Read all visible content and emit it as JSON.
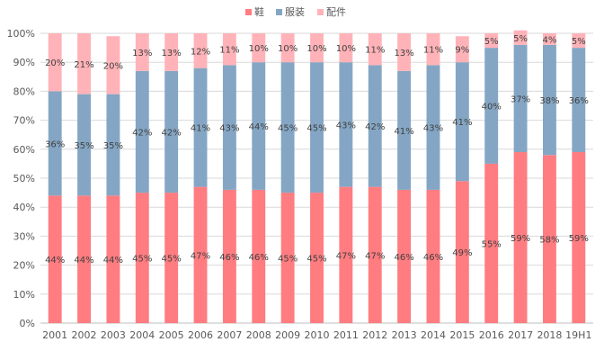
{
  "chart_data": {
    "type": "bar",
    "stacked": true,
    "percent_stacked": true,
    "title": "",
    "xlabel": "",
    "ylabel": "",
    "ylim": [
      0,
      100
    ],
    "yticks": [
      "0%",
      "10%",
      "20%",
      "30%",
      "40%",
      "50%",
      "60%",
      "70%",
      "80%",
      "90%",
      "100%"
    ],
    "legend_position": "top-center",
    "grid": true,
    "categories": [
      "2001",
      "2002",
      "2003",
      "2004",
      "2005",
      "2006",
      "2007",
      "2008",
      "2009",
      "2010",
      "2011",
      "2012",
      "2013",
      "2014",
      "2015",
      "2016",
      "2017",
      "2018",
      "19H1"
    ],
    "series": [
      {
        "name": "鞋",
        "color": "#FF7C80",
        "values": [
          44,
          44,
          44,
          45,
          45,
          47,
          46,
          46,
          45,
          45,
          47,
          47,
          46,
          46,
          49,
          55,
          59,
          58,
          59
        ]
      },
      {
        "name": "服装",
        "color": "#84A6C4",
        "values": [
          36,
          35,
          35,
          42,
          42,
          41,
          43,
          44,
          45,
          45,
          43,
          42,
          41,
          43,
          41,
          40,
          37,
          38,
          36
        ]
      },
      {
        "name": "配件",
        "color": "#FFB3B8",
        "values": [
          20,
          21,
          20,
          13,
          13,
          12,
          11,
          10,
          10,
          10,
          10,
          11,
          13,
          11,
          9,
          5,
          5,
          4,
          5
        ]
      }
    ]
  }
}
